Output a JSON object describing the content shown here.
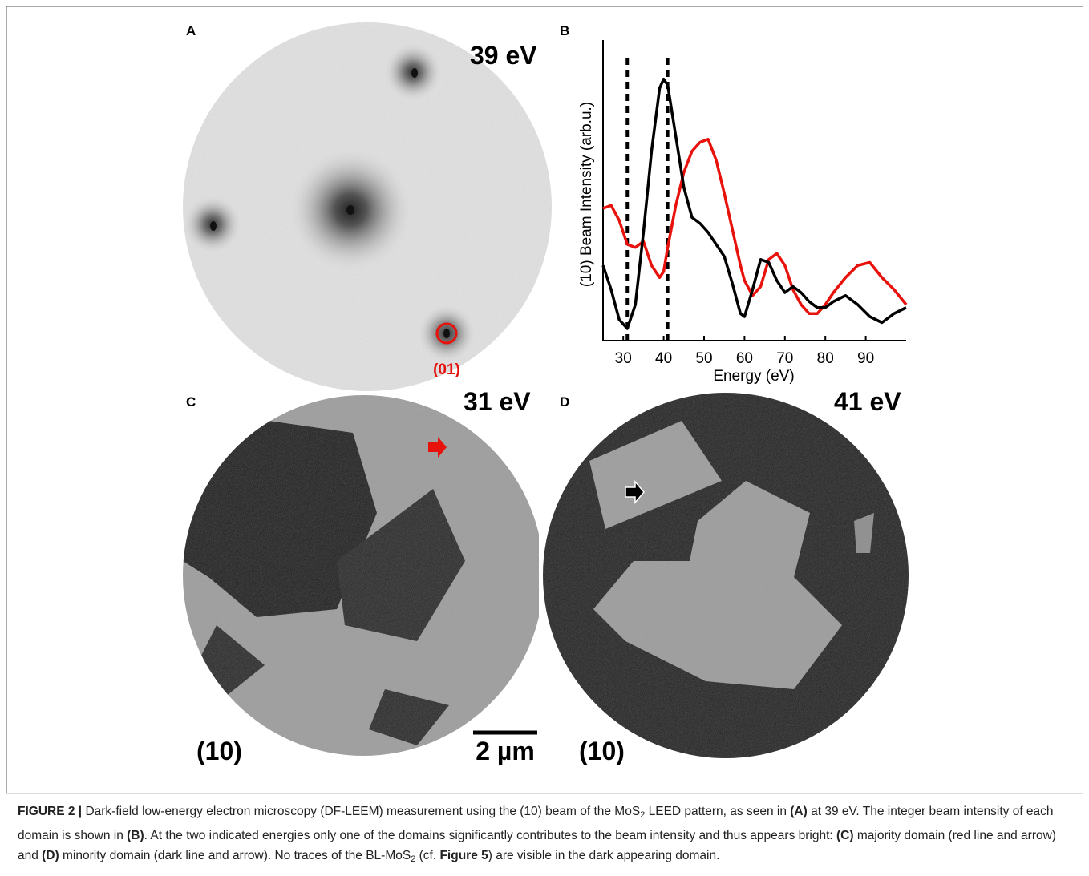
{
  "panels": {
    "a": {
      "label": "A",
      "energy": "39 eV",
      "spot": "(01)"
    },
    "b": {
      "label": "B"
    },
    "c": {
      "label": "C",
      "energy": "31 eV",
      "beam": "(10)",
      "scale": "2 µm"
    },
    "d": {
      "label": "D",
      "energy": "41 eV",
      "beam": "(10)"
    }
  },
  "chart_data": {
    "type": "line",
    "xlabel": "Energy (eV)",
    "ylabel": "(10) Beam Intensity (arb.u.)",
    "xlim": [
      25,
      100
    ],
    "xticks": [
      30,
      40,
      50,
      60,
      70,
      80,
      90
    ],
    "ylim": [
      0,
      1
    ],
    "vlines": [
      31,
      41
    ],
    "x": [
      25,
      27,
      29,
      31,
      33,
      35,
      37,
      39,
      40,
      41,
      43,
      45,
      47,
      49,
      51,
      53,
      55,
      57,
      59,
      60,
      62,
      64,
      66,
      68,
      70,
      72,
      74,
      76,
      78,
      80,
      82,
      85,
      88,
      91,
      94,
      97,
      100
    ],
    "series": [
      {
        "color": "#e8120c",
        "values": [
          0.44,
          0.45,
          0.4,
          0.32,
          0.31,
          0.33,
          0.25,
          0.21,
          0.23,
          0.31,
          0.45,
          0.56,
          0.63,
          0.66,
          0.67,
          0.6,
          0.49,
          0.37,
          0.25,
          0.2,
          0.15,
          0.18,
          0.27,
          0.29,
          0.25,
          0.17,
          0.12,
          0.09,
          0.09,
          0.12,
          0.16,
          0.21,
          0.25,
          0.26,
          0.21,
          0.17,
          0.12
        ]
      },
      {
        "color": "#000000",
        "values": [
          0.25,
          0.17,
          0.07,
          0.04,
          0.12,
          0.36,
          0.63,
          0.84,
          0.87,
          0.85,
          0.68,
          0.51,
          0.41,
          0.39,
          0.36,
          0.32,
          0.28,
          0.19,
          0.09,
          0.08,
          0.17,
          0.27,
          0.26,
          0.2,
          0.16,
          0.18,
          0.16,
          0.13,
          0.11,
          0.11,
          0.13,
          0.15,
          0.12,
          0.08,
          0.06,
          0.09,
          0.11
        ]
      }
    ]
  },
  "caption": {
    "label": "FIGURE 2 |",
    "runs": [
      " Dark-field low-energy electron microscopy (DF-LEEM) measurement using the (10) beam of the MoS",
      "2",
      " LEED pattern, as seen in ",
      "(A)",
      " at 39 eV. The integer beam intensity of each domain is shown in ",
      "(B)",
      ". At the two indicated energies only one of the domains significantly contributes to the beam intensity and thus appears bright: ",
      "(C)",
      " majority domain (red line and arrow) and ",
      "(D)",
      " minority domain (dark line and arrow). No traces of the BL-MoS",
      "2",
      " (cf. ",
      "Figure 5",
      ") are visible in the dark appearing domain."
    ]
  }
}
